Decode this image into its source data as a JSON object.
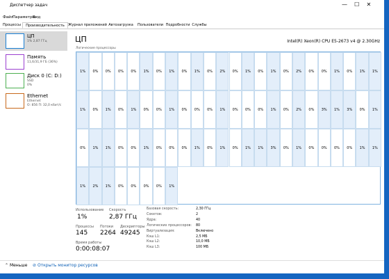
{
  "window": {
    "title": "Диспетчер задач",
    "menu": [
      "Файл",
      "Параметры",
      "Вид"
    ],
    "tabs": [
      "Процессы",
      "Производительность",
      "Журнал приложений",
      "Автозагрузка",
      "Пользователи",
      "Подробности",
      "Службы"
    ]
  },
  "sidebar": [
    {
      "name": "ЦП",
      "lines": [
        "1% 2,87 ГГц"
      ]
    },
    {
      "name": "Память",
      "lines": [
        "11,6/31,9 ГБ (36%)"
      ]
    },
    {
      "name": "Диск 0 (C: D:)",
      "lines": [
        "SSD",
        "0%"
      ]
    },
    {
      "name": "Ethernet",
      "lines": [
        "Ethernet",
        "О: 856 П: 32,0 кбит/с"
      ]
    }
  ],
  "main": {
    "heading": "ЦП",
    "cpu_model": "Intel(R) Xeon(R) CPU E5-2673 v4 @ 2.30GHz",
    "grid_label": "Логические процессоры",
    "cells": [
      [
        "1%",
        "0%",
        "0%",
        "0%",
        "0%",
        "1%",
        "0%",
        "1%",
        "0%",
        "1%",
        "0%",
        "2%",
        "0%",
        "1%",
        "0%",
        "1%",
        "0%",
        "2%",
        "0%",
        "0%",
        "1%",
        "0%",
        "1%",
        "1%"
      ],
      [
        "1%",
        "0%",
        "1%",
        "0%",
        "1%",
        "0%",
        "0%",
        "1%",
        "0%",
        "0%",
        "0%",
        "1%",
        "0%",
        "0%",
        "0%",
        "1%",
        "0%",
        "2%",
        "0%",
        "3%",
        "1%",
        "3%",
        "0%",
        "1%"
      ],
      [
        "0%",
        "1%",
        "1%",
        "0%",
        "0%",
        "1%",
        "0%",
        "0%",
        "0%",
        "1%",
        "0%",
        "1%",
        "0%",
        "1%",
        "1%",
        "3%",
        "0%",
        "1%",
        "0%",
        "0%",
        "0%",
        "0%",
        "1%",
        "1%"
      ],
      [
        "1%",
        "2%",
        "1%",
        "0%",
        "0%",
        "0%",
        "0%",
        "1%"
      ]
    ],
    "stats": {
      "usage_label": "Использование",
      "usage": "1%",
      "speed_label": "Скорость",
      "speed": "2,87 ГГц",
      "processes_label": "Процессы",
      "processes": "145",
      "threads_label": "Потоки",
      "threads": "2264",
      "handles_label": "Дескрипторы",
      "handles": "49245",
      "uptime_label": "Время работы",
      "uptime": "0:00:08:07"
    },
    "details": [
      [
        "Базовая скорость:",
        "2,30 ГГц"
      ],
      [
        "Сокетов:",
        "2"
      ],
      [
        "Ядра:",
        "40"
      ],
      [
        "Логических процессоров:",
        "80"
      ],
      [
        "Виртуализация:",
        "Включено"
      ],
      [
        "Кэш L1:",
        "2,5 МБ"
      ],
      [
        "Кэш L2:",
        "10,0 МБ"
      ],
      [
        "Кэш L3:",
        "100 МБ"
      ]
    ]
  },
  "footer": {
    "less": "Меньше",
    "monitor": "Открыть монитор ресурсов"
  }
}
